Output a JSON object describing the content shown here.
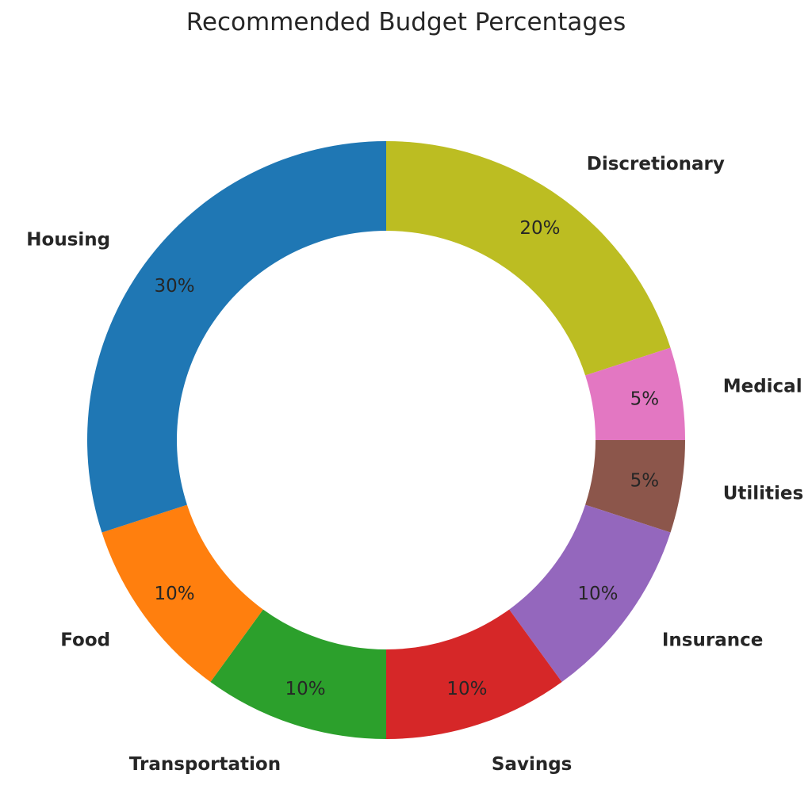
{
  "chart_data": {
    "type": "pie",
    "variant": "donut",
    "title": "Recommended Budget Percentages",
    "start": "top",
    "direction": "clockwise",
    "slices": [
      {
        "label": "Discretionary",
        "value": 20,
        "pct_label": "20%",
        "color": "#bcbd22"
      },
      {
        "label": "Medical",
        "value": 5,
        "pct_label": "5%",
        "color": "#e377c2"
      },
      {
        "label": "Utilities",
        "value": 5,
        "pct_label": "5%",
        "color": "#8c564b"
      },
      {
        "label": "Insurance",
        "value": 10,
        "pct_label": "10%",
        "color": "#9467bd"
      },
      {
        "label": "Savings",
        "value": 10,
        "pct_label": "10%",
        "color": "#d62728"
      },
      {
        "label": "Transportation",
        "value": 10,
        "pct_label": "10%",
        "color": "#2ca02c"
      },
      {
        "label": "Food",
        "value": 10,
        "pct_label": "10%",
        "color": "#ff7f0e"
      },
      {
        "label": "Housing",
        "value": 30,
        "pct_label": "30%",
        "color": "#1f77b4"
      }
    ]
  }
}
